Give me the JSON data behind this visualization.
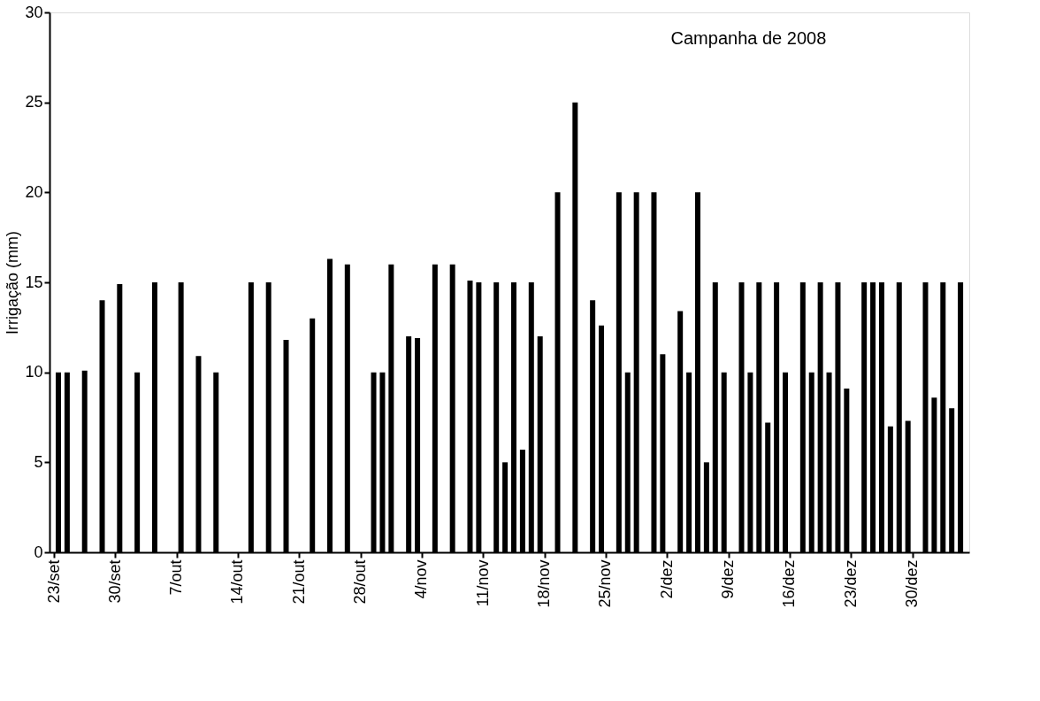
{
  "chart_data": {
    "type": "bar",
    "ylabel": "Irrigação (mm)",
    "annotations": [
      "Campanha de 2008"
    ],
    "x": [
      "2008-09-23",
      "2008-09-24",
      "2008-09-26",
      "2008-09-28",
      "2008-09-30",
      "2008-10-02",
      "2008-10-04",
      "2008-10-07",
      "2008-10-09",
      "2008-10-11",
      "2008-10-15",
      "2008-10-17",
      "2008-10-19",
      "2008-10-22",
      "2008-10-24",
      "2008-10-26",
      "2008-10-29",
      "2008-10-30",
      "2008-10-31",
      "2008-11-02",
      "2008-11-03",
      "2008-11-05",
      "2008-11-07",
      "2008-11-09",
      "2008-11-10",
      "2008-11-12",
      "2008-11-13",
      "2008-11-14",
      "2008-11-15",
      "2008-11-16",
      "2008-11-17",
      "2008-11-19",
      "2008-11-21",
      "2008-11-23",
      "2008-11-24",
      "2008-11-26",
      "2008-11-27",
      "2008-11-28",
      "2008-11-30",
      "2008-12-01",
      "2008-12-03",
      "2008-12-04",
      "2008-12-05",
      "2008-12-06",
      "2008-12-07",
      "2008-12-08",
      "2008-12-10",
      "2008-12-11",
      "2008-12-12",
      "2008-12-13",
      "2008-12-14",
      "2008-12-15",
      "2008-12-17",
      "2008-12-18",
      "2008-12-19",
      "2008-12-20",
      "2008-12-21",
      "2008-12-22",
      "2008-12-24",
      "2008-12-25",
      "2008-12-26",
      "2008-12-27",
      "2008-12-28",
      "2008-12-29",
      "2008-12-31",
      "2009-01-01",
      "2009-01-02",
      "2009-01-03",
      "2009-01-04"
    ],
    "values": [
      10,
      10,
      10.1,
      14,
      14.9,
      10,
      15,
      15,
      10.9,
      10,
      15,
      15,
      11.8,
      13,
      16.3,
      16,
      10,
      10,
      16,
      12,
      11.9,
      16,
      16,
      15.1,
      15,
      15,
      5,
      15,
      5.7,
      15,
      12,
      20,
      25,
      14,
      12.6,
      20,
      10,
      20,
      20,
      11,
      13.4,
      10,
      20,
      5,
      15,
      10,
      15,
      10,
      15,
      7.2,
      15,
      10,
      15,
      10,
      15,
      10,
      15,
      9.1,
      15,
      15,
      15,
      7,
      15,
      7.3,
      15,
      8.6,
      15,
      8,
      15
    ],
    "color": "#000000",
    "xlim": [
      "2008-09-23",
      "2009-01-05"
    ],
    "xticks": [
      {
        "value": "2008-09-23",
        "label": "23/set"
      },
      {
        "value": "2008-09-30",
        "label": "30/set"
      },
      {
        "value": "2008-10-07",
        "label": "7/out"
      },
      {
        "value": "2008-10-14",
        "label": "14/out"
      },
      {
        "value": "2008-10-21",
        "label": "21/out"
      },
      {
        "value": "2008-10-28",
        "label": "28/out"
      },
      {
        "value": "2008-11-04",
        "label": "4/nov"
      },
      {
        "value": "2008-11-11",
        "label": "11/nov"
      },
      {
        "value": "2008-11-18",
        "label": "18/nov"
      },
      {
        "value": "2008-11-25",
        "label": "25/nov"
      },
      {
        "value": "2008-12-02",
        "label": "2/dez"
      },
      {
        "value": "2008-12-09",
        "label": "9/dez"
      },
      {
        "value": "2008-12-16",
        "label": "16/dez"
      },
      {
        "value": "2008-12-23",
        "label": "23/dez"
      },
      {
        "value": "2008-12-30",
        "label": "30/dez"
      }
    ],
    "ylim": [
      0,
      30
    ],
    "yticks": [
      0,
      5,
      10,
      15,
      20,
      25,
      30
    ],
    "grid": false
  }
}
